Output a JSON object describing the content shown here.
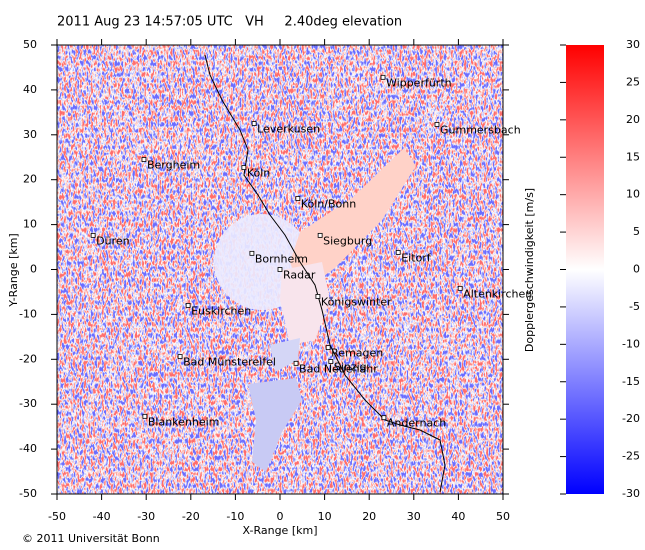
{
  "chart_data": {
    "type": "radar_ppi",
    "title": "2011 Aug 23 14:57:05 UTC   VH     2.40deg elevation",
    "x_label": "X-Range [km]",
    "y_label": "Y-Range [km]",
    "xlim": [
      -50,
      50
    ],
    "ylim": [
      -50,
      50
    ],
    "xticks": [
      -50,
      -40,
      -30,
      -20,
      -10,
      0,
      10,
      20,
      30,
      40,
      50
    ],
    "yticks": [
      -50,
      -40,
      -30,
      -20,
      -10,
      0,
      10,
      20,
      30,
      40,
      50
    ],
    "colorbar": {
      "label": "Dopplergeschwindigkeit [m/s]",
      "lim": [
        -30,
        30
      ],
      "ticks": [
        -30,
        -25,
        -20,
        -15,
        -10,
        -5,
        0,
        5,
        10,
        15,
        20,
        25,
        30
      ],
      "colors": [
        "#0000ff",
        "#ffffff",
        "#ff0000"
      ]
    },
    "annotations": [
      {
        "text": "Wipperfürth",
        "x": 23.1,
        "y": 42.8
      },
      {
        "text": "Leverkusen",
        "x": -5.8,
        "y": 32.5
      },
      {
        "text": "Gummersbach",
        "x": 35.2,
        "y": 32.3
      },
      {
        "text": "Bergheim",
        "x": -30.5,
        "y": 24.5
      },
      {
        "text": "Köln",
        "x": -8.1,
        "y": 22.7
      },
      {
        "text": "Köln/Bonn",
        "x": 4.0,
        "y": 15.8
      },
      {
        "text": "Düren",
        "x": -41.9,
        "y": 7.6
      },
      {
        "text": "Siegburg",
        "x": 9.0,
        "y": 7.6
      },
      {
        "text": "Eitorf",
        "x": 26.5,
        "y": 3.8
      },
      {
        "text": "Bornheim",
        "x": -6.3,
        "y": 3.6
      },
      {
        "text": "Radar",
        "x": 0,
        "y": 0
      },
      {
        "text": "Altenkirchen",
        "x": 40.4,
        "y": -4.2
      },
      {
        "text": "Königswinter",
        "x": 8.5,
        "y": -6.0
      },
      {
        "text": "Euskirchen",
        "x": -20.6,
        "y": -8.0
      },
      {
        "text": "Remagen",
        "x": 10.8,
        "y": -17.4
      },
      {
        "text": "Bad Münstereifel",
        "x": -22.4,
        "y": -19.4
      },
      {
        "text": "Bad Neuenahr",
        "x": 3.6,
        "y": -20.9
      },
      {
        "text": "Sinzig",
        "x": 11.4,
        "y": -20.5
      },
      {
        "text": "Blankenheim",
        "x": -30.3,
        "y": -32.7
      },
      {
        "text": "Andernach",
        "x": 23.3,
        "y": -33.0
      }
    ],
    "copyright": "© 2011 Universität Bonn"
  }
}
